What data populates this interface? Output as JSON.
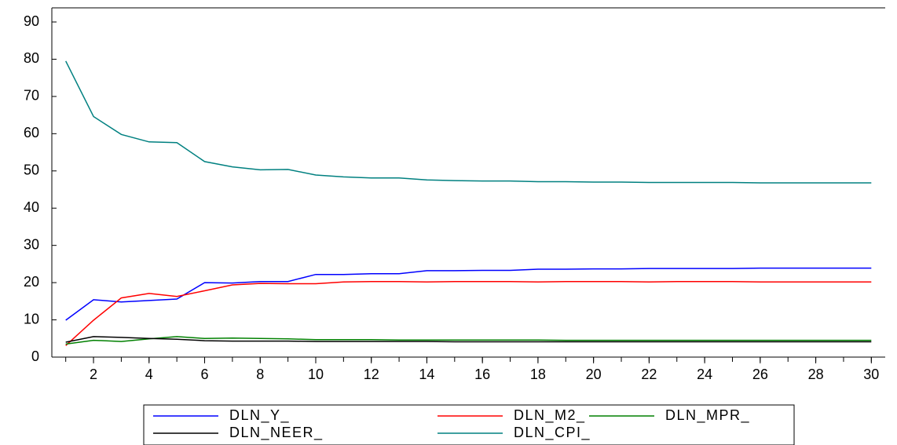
{
  "chart_data": {
    "type": "line",
    "x": [
      1,
      2,
      3,
      4,
      5,
      6,
      7,
      8,
      9,
      10,
      11,
      12,
      13,
      14,
      15,
      16,
      17,
      18,
      19,
      20,
      21,
      22,
      23,
      24,
      25,
      26,
      27,
      28,
      29,
      30
    ],
    "xlim": [
      0.5,
      30.5
    ],
    "xticks": [
      2,
      4,
      6,
      8,
      10,
      12,
      14,
      16,
      18,
      20,
      22,
      24,
      26,
      28,
      30
    ],
    "ylim": [
      0,
      90
    ],
    "yticks": [
      0,
      10,
      20,
      30,
      40,
      50,
      60,
      70,
      80,
      90
    ],
    "series": [
      {
        "name": "DLN_Y_",
        "color": "#0000ff",
        "values": [
          9.9,
          15.4,
          14.8,
          15.2,
          15.6,
          20.0,
          19.9,
          20.3,
          20.3,
          22.2,
          22.2,
          22.4,
          22.4,
          23.2,
          23.2,
          23.3,
          23.3,
          23.6,
          23.6,
          23.7,
          23.7,
          23.8,
          23.8,
          23.8,
          23.8,
          23.9,
          23.9,
          23.9,
          23.9,
          23.9
        ]
      },
      {
        "name": "DLN_M2_",
        "color": "#ff0000",
        "values": [
          3.1,
          9.9,
          15.9,
          17.1,
          16.3,
          17.8,
          19.4,
          19.8,
          19.7,
          19.7,
          20.2,
          20.3,
          20.3,
          20.2,
          20.3,
          20.3,
          20.3,
          20.2,
          20.3,
          20.3,
          20.3,
          20.2,
          20.3,
          20.3,
          20.3,
          20.2,
          20.2,
          20.2,
          20.2,
          20.2
        ]
      },
      {
        "name": "DLN_MPR_",
        "color": "#008000",
        "values": [
          3.5,
          4.5,
          4.2,
          4.9,
          5.5,
          5.0,
          5.1,
          5.0,
          4.9,
          4.7,
          4.7,
          4.7,
          4.6,
          4.6,
          4.6,
          4.6,
          4.6,
          4.6,
          4.5,
          4.5,
          4.5,
          4.5,
          4.5,
          4.5,
          4.5,
          4.5,
          4.5,
          4.5,
          4.5,
          4.5
        ]
      },
      {
        "name": "DLN_NEER_",
        "color": "#000000",
        "values": [
          4.0,
          5.5,
          5.3,
          5.0,
          4.8,
          4.4,
          4.3,
          4.3,
          4.3,
          4.2,
          4.2,
          4.2,
          4.2,
          4.2,
          4.1,
          4.1,
          4.1,
          4.1,
          4.1,
          4.1,
          4.1,
          4.1,
          4.1,
          4.1,
          4.1,
          4.1,
          4.1,
          4.1,
          4.1,
          4.1
        ]
      },
      {
        "name": "DLN_CPI_",
        "color": "#008080",
        "values": [
          79.5,
          64.6,
          59.8,
          57.8,
          57.6,
          52.5,
          51.1,
          50.3,
          50.4,
          48.9,
          48.4,
          48.1,
          48.1,
          47.6,
          47.4,
          47.3,
          47.3,
          47.1,
          47.1,
          47.0,
          47.0,
          46.9,
          46.9,
          46.9,
          46.9,
          46.8,
          46.8,
          46.8,
          46.8,
          46.8
        ]
      }
    ]
  }
}
